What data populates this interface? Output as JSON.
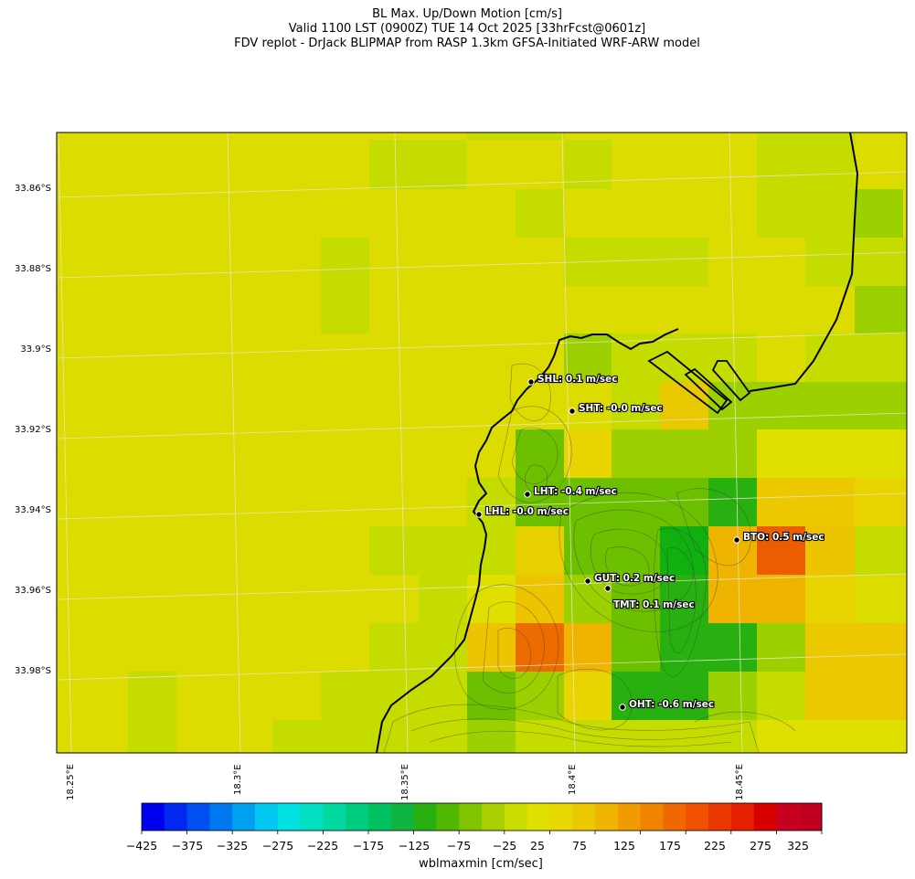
{
  "title": {
    "line1": "BL Max. Up/Down Motion [cm/s]",
    "line2": "Valid 1100 LST (0900Z) TUE 14 Oct 2025 [33hrFcst@0601z]",
    "line3": "FDV replot - DrJack BLIPMAP from RASP 1.3km GFSA-Initiated WRF-ARW model"
  },
  "map": {
    "lon_ticks": [
      "18.25°E",
      "18.3°E",
      "18.35°E",
      "18.4°E",
      "18.45°E"
    ],
    "lat_ticks": [
      "33.86°S",
      "33.88°S",
      "33.9°S",
      "33.92°S",
      "33.94°S",
      "33.96°S",
      "33.98°S"
    ],
    "stations": [
      {
        "label": "SHL: 0.1 m/sec"
      },
      {
        "label": "SHT: -0.0 m/sec"
      },
      {
        "label": "LHT: -0.4 m/sec"
      },
      {
        "label": "LHL: -0.0 m/sec"
      },
      {
        "label": "BTO: 0.5 m/sec"
      },
      {
        "label": "GUT: 0.2 m/sec"
      },
      {
        "label": "TMT: 0.1 m/sec"
      },
      {
        "label": "OHT: -0.6 m/sec"
      }
    ]
  },
  "colorbar": {
    "tick_labels": [
      "−425",
      "−375",
      "−325",
      "−275",
      "−225",
      "−175",
      "−125",
      "−75",
      "−25",
      "25",
      "75",
      "125",
      "175",
      "225",
      "275",
      "325"
    ],
    "label": "wblmaxmin [cm/sec]",
    "colors": [
      "#0000f0",
      "#0028f0",
      "#0050f0",
      "#0078f0",
      "#00a0f0",
      "#00c8f0",
      "#00e0e0",
      "#00e0c0",
      "#00d8a0",
      "#00cc80",
      "#00c060",
      "#10b440",
      "#28b010",
      "#50b800",
      "#80c400",
      "#a8d000",
      "#c8dc00",
      "#e0e000",
      "#e8d800",
      "#ecc800",
      "#eeb400",
      "#f09c00",
      "#f08400",
      "#f06800",
      "#f05000",
      "#e83800",
      "#e42000",
      "#d80000",
      "#c80020",
      "#c00020"
    ]
  }
}
